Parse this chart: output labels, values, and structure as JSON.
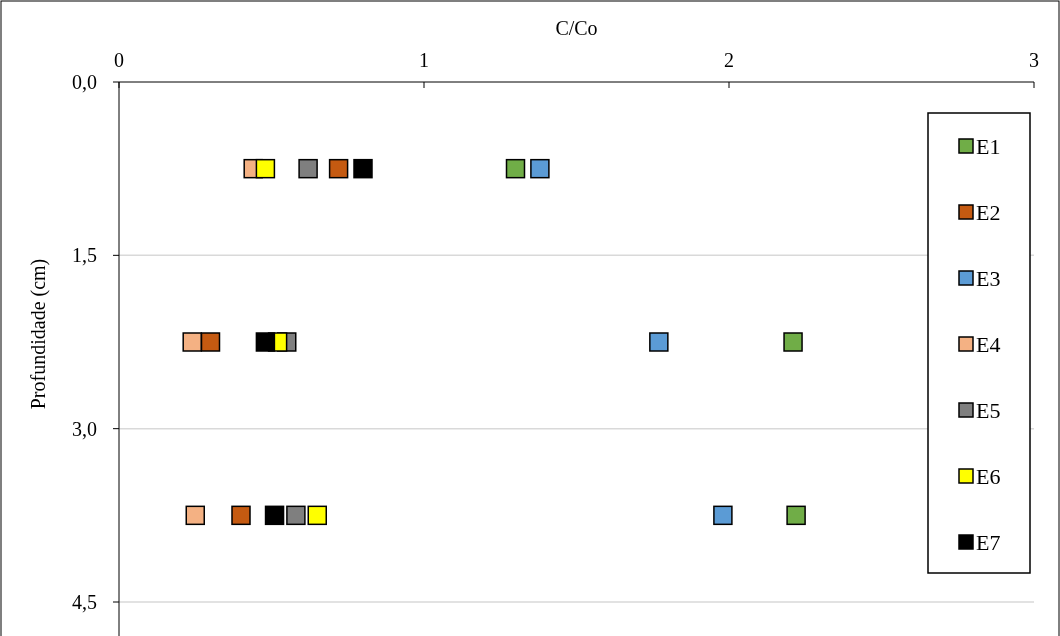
{
  "chart_data": {
    "type": "scatter",
    "xlabel": "C/Co",
    "ylabel": "Profundidade (cm)",
    "xlim": [
      0,
      3
    ],
    "xticks": [
      0,
      1,
      2,
      3
    ],
    "ylim": [
      4.5,
      0
    ],
    "yticks": [
      {
        "value": 0,
        "label": "0,0"
      },
      {
        "value": 1.5,
        "label": "1,5"
      },
      {
        "value": 3,
        "label": "3,0"
      },
      {
        "value": 4.5,
        "label": "4,5"
      }
    ],
    "grid": "y",
    "legend": "right",
    "marker": "square",
    "series": [
      {
        "name": "E1",
        "color": "#70ad47",
        "x": [
          1.3,
          2.21,
          2.22
        ],
        "values": [
          0.75,
          2.25,
          3.75
        ]
      },
      {
        "name": "E2",
        "color": "#c55a11",
        "x": [
          0.72,
          0.3,
          0.4
        ],
        "values": [
          0.75,
          2.25,
          3.75
        ]
      },
      {
        "name": "E3",
        "color": "#5b9bd5",
        "x": [
          1.38,
          1.77,
          1.98
        ],
        "values": [
          0.75,
          2.25,
          3.75
        ]
      },
      {
        "name": "E4",
        "color": "#f4b183",
        "x": [
          0.44,
          0.24,
          0.25
        ],
        "values": [
          0.75,
          2.25,
          3.75
        ]
      },
      {
        "name": "E5",
        "color": "#7f7f7f",
        "x": [
          0.62,
          0.55,
          0.58
        ],
        "values": [
          0.75,
          2.25,
          3.75
        ]
      },
      {
        "name": "E6",
        "color": "#ffff00",
        "x": [
          0.48,
          0.52,
          0.65
        ],
        "values": [
          0.75,
          2.25,
          3.75
        ]
      },
      {
        "name": "E7",
        "color": "#000000",
        "x": [
          0.8,
          0.48,
          0.51
        ],
        "values": [
          0.75,
          2.25,
          3.75
        ]
      }
    ]
  }
}
